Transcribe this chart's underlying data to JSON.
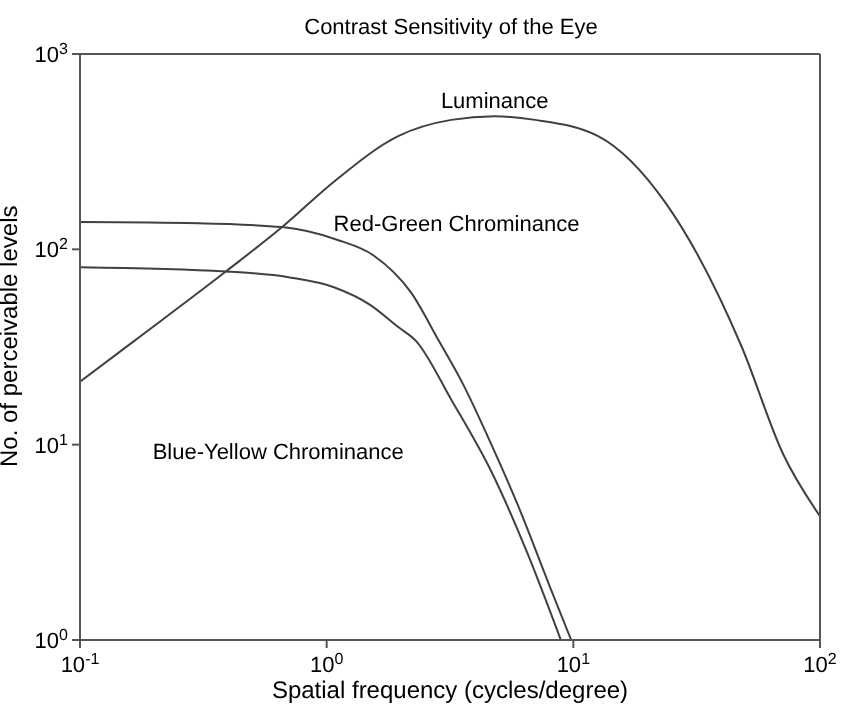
{
  "chart_data": {
    "type": "line",
    "title": "Contrast Sensitivity of the Eye",
    "xlabel": "Spatial frequency (cycles/degree)",
    "ylabel": "No. of perceivable levels",
    "log": "xy",
    "marker": "none",
    "line_style": "solid",
    "xlim": [
      0.1,
      100
    ],
    "ylim": [
      1,
      1000
    ],
    "xticks": [
      {
        "value": 0.1,
        "label": "10$^{-1}$"
      },
      {
        "value": 1,
        "label": "10$^{0}$"
      },
      {
        "value": 10,
        "label": "10$^{1}$"
      },
      {
        "value": 100,
        "label": "10$^{2}$"
      }
    ],
    "yticks": [
      {
        "value": 1,
        "label": "10$^{0}$"
      },
      {
        "value": 10,
        "label": "10$^{1}$"
      },
      {
        "value": 100,
        "label": "10$^{2}$"
      },
      {
        "value": 1000,
        "label": "10$^{3}$"
      }
    ],
    "series": [
      {
        "name": "Luminance",
        "color": "#404040",
        "x": [
          0.1,
          0.166,
          0.39,
          0.66,
          1.07,
          1.95,
          3.2,
          4.8,
          7,
          12.6,
          23.5,
          48,
          71,
          100
        ],
        "values": [
          21,
          34,
          77,
          130,
          222,
          380,
          460,
          480,
          460,
          380,
          175,
          32,
          8.9,
          4.3
        ]
      },
      {
        "name": "Red-Green Chrominance",
        "color": "#404040",
        "x": [
          0.1,
          0.3,
          0.66,
          1.1,
          1.55,
          2.2,
          2.85,
          3.6,
          4.5,
          6,
          8,
          9.8
        ],
        "values": [
          138,
          136,
          130,
          112,
          93,
          60,
          34,
          20,
          11,
          4.8,
          1.9,
          1
        ]
      },
      {
        "name": "Blue-Yellow Chrominance",
        "color": "#404040",
        "x": [
          0.1,
          0.39,
          0.7,
          1.07,
          1.5,
          1.95,
          2.3,
          3.2,
          4.7,
          6.5,
          8.9
        ],
        "values": [
          81,
          77,
          72,
          64,
          52,
          40,
          34,
          17,
          7.1,
          2.8,
          1
        ]
      }
    ]
  }
}
